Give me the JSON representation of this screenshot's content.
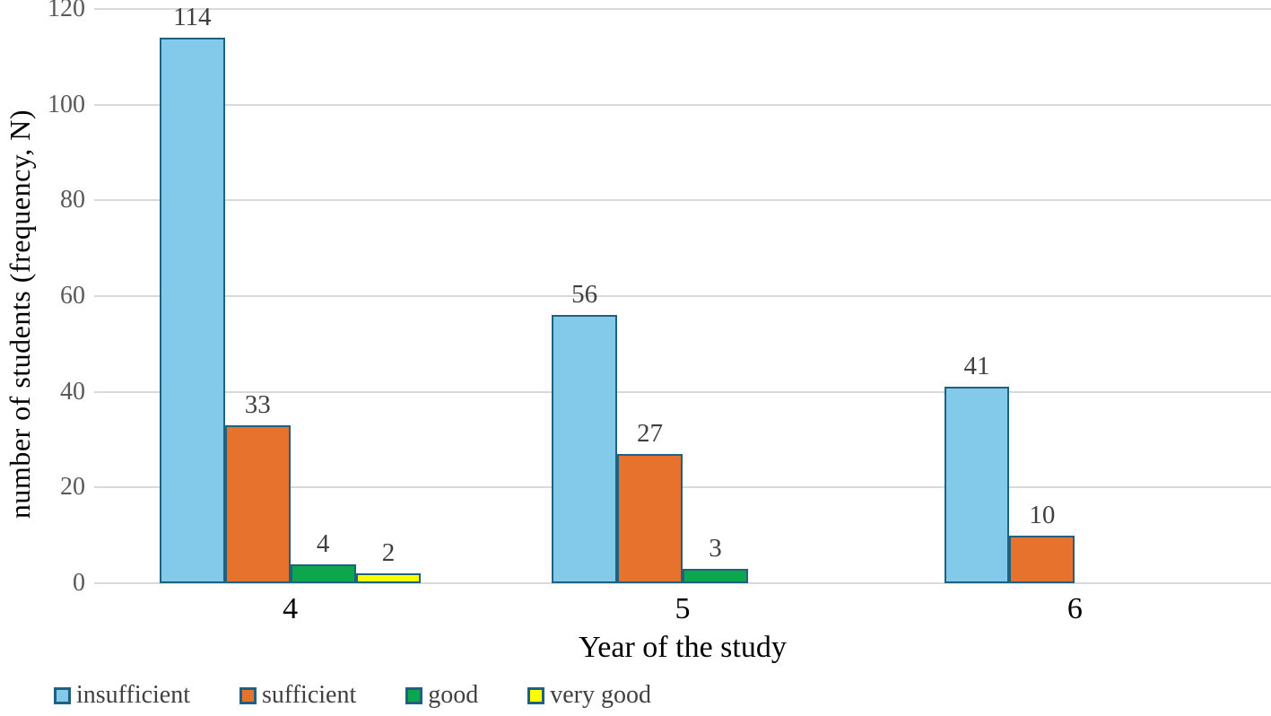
{
  "chart_data": {
    "type": "bar",
    "title": "",
    "xlabel": "Year of the study",
    "ylabel": "number of students (frequency, N)",
    "categories": [
      "4",
      "5",
      "6"
    ],
    "series": [
      {
        "name": "insufficient",
        "color": "#82C9EA",
        "values": [
          114,
          56,
          41
        ]
      },
      {
        "name": "sufficient",
        "color": "#E7722E",
        "values": [
          33,
          27,
          10
        ]
      },
      {
        "name": "good",
        "color": "#0CA64D",
        "values": [
          4,
          3,
          null
        ]
      },
      {
        "name": "very good",
        "color": "#FFFF00",
        "values": [
          2,
          null,
          null
        ]
      }
    ],
    "ylim": [
      0,
      120
    ],
    "yticks": [
      0,
      20,
      40,
      60,
      80,
      100,
      120
    ],
    "grid": true,
    "data_labels": true,
    "legend_position": "bottom-left",
    "colors": {
      "bar_border": "#1F617F",
      "gridline": "#D9D9D9",
      "tick_label": "#595959",
      "value_label": "#3F3F3F",
      "axis_title": "#000000",
      "legend_text": "#404040",
      "background": "#ffffff"
    }
  }
}
